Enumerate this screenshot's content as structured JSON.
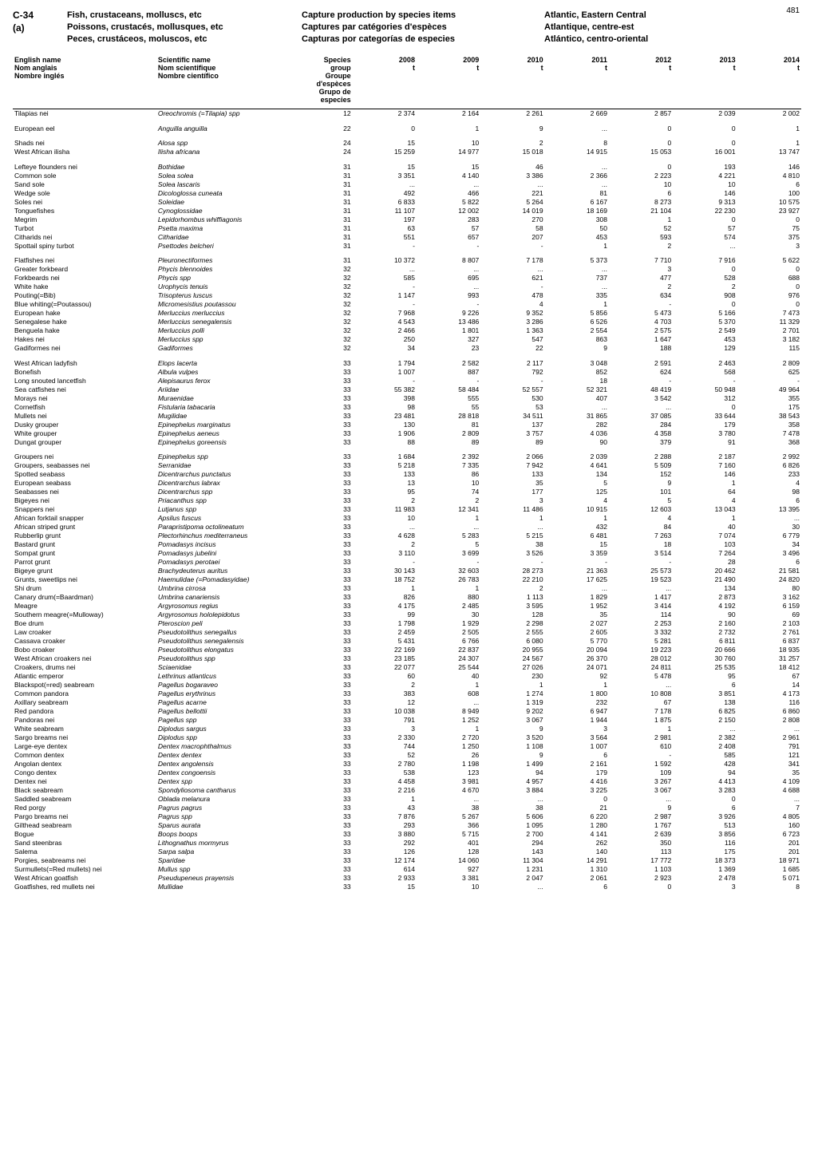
{
  "page": {
    "number": "481"
  },
  "header": {
    "code": [
      "C-34",
      "(a)"
    ],
    "title1": [
      "Fish, crustaceans, molluscs, etc",
      "Poissons, crustacés, mollusques, etc",
      "Peces, crustáceos, moluscos, etc"
    ],
    "title2": [
      "Capture production by species items",
      "Captures par catégories d'espèces",
      "Capturas por categorías de especies"
    ],
    "title3": [
      "Atlantic, Eastern Central",
      "Atlantique, centre-est",
      "Atlántico, centro-oriental"
    ]
  },
  "columns": {
    "english": [
      "English name",
      "Nom anglais",
      "Nombre inglés"
    ],
    "scientific": [
      "Scientific name",
      "Nom scientifique",
      "Nombre científico"
    ],
    "group": [
      "Species group",
      "Groupe d'espèces",
      "Grupo de especies"
    ],
    "years": [
      "2008",
      "2009",
      "2010",
      "2011",
      "2012",
      "2013",
      "2014"
    ],
    "unit": "t"
  },
  "gaps": [
    1,
    2,
    4,
    14,
    25,
    35,
    88
  ],
  "rows": [
    [
      "Tilapias nei",
      "Oreochromis (=Tilapia) spp",
      "12",
      "2 374",
      "2 164",
      "2 261",
      "2 669",
      "2 857",
      "2 039",
      "2 002"
    ],
    [
      "European eel",
      "Anguilla anguilla",
      "22",
      "0",
      "1",
      "9",
      "...",
      "0",
      "0",
      "1"
    ],
    [
      "Shads nei",
      "Alosa spp",
      "24",
      "15",
      "10",
      "2",
      "8",
      "0",
      "0",
      "1"
    ],
    [
      "West African ilisha",
      "Ilisha africana",
      "24",
      "15 259",
      "14 977",
      "15 018",
      "14 915",
      "15 053",
      "16 001",
      "13 747"
    ],
    [
      "Lefteye flounders nei",
      "Bothidae",
      "31",
      "15",
      "15",
      "46",
      "...",
      "0",
      "193",
      "146"
    ],
    [
      "Common sole",
      "Solea solea",
      "31",
      "3 351",
      "4 140",
      "3 386",
      "2 366",
      "2 223",
      "4 221",
      "4 810"
    ],
    [
      "Sand sole",
      "Solea lascaris",
      "31",
      "...",
      "...",
      "...",
      "...",
      "10",
      "10",
      "6"
    ],
    [
      "Wedge sole",
      "Dicologlossa cuneata",
      "31",
      "492",
      "466",
      "221",
      "81",
      "6",
      "146",
      "100"
    ],
    [
      "Soles nei",
      "Soleidae",
      "31",
      "6 833",
      "5 822",
      "5 264",
      "6 167",
      "8 273",
      "9 313",
      "10 575"
    ],
    [
      "Tonguefishes",
      "Cynoglossidae",
      "31",
      "11 107",
      "12 002",
      "14 019",
      "18 169",
      "21 104",
      "22 230",
      "23 927"
    ],
    [
      "Megrim",
      "Lepidorhombus whiffiagonis",
      "31",
      "197",
      "283",
      "270",
      "308",
      "1",
      "0",
      "0"
    ],
    [
      "Turbot",
      "Psetta maxima",
      "31",
      "63",
      "57",
      "58",
      "50",
      "52",
      "57",
      "75"
    ],
    [
      "Citharids nei",
      "Citharidae",
      "31",
      "551",
      "657",
      "207",
      "453",
      "593",
      "574",
      "375"
    ],
    [
      "Spottail spiny turbot",
      "Psettodes belcheri",
      "31",
      "-",
      "-",
      "-",
      "1",
      "2",
      "...",
      "3"
    ],
    [
      "Flatfishes nei",
      "Pleuronectiformes",
      "31",
      "10 372",
      "8 807",
      "7 178",
      "5 373",
      "7 710",
      "7 916",
      "5 622"
    ],
    [
      "Greater forkbeard",
      "Phycis blennoides",
      "32",
      "...",
      "...",
      "...",
      "...",
      "3",
      "0",
      "0"
    ],
    [
      "Forkbeards nei",
      "Phycis spp",
      "32",
      "585",
      "695",
      "621",
      "737",
      "477",
      "528",
      "688"
    ],
    [
      "White hake",
      "Urophycis tenuis",
      "32",
      "-",
      "...",
      "-",
      "...",
      "2",
      "2",
      "0"
    ],
    [
      "Pouting(=Bib)",
      "Trisopterus luscus",
      "32",
      "1 147",
      "993",
      "478",
      "335",
      "634",
      "908",
      "976"
    ],
    [
      "Blue whiting(=Poutassou)",
      "Micromesistius poutassou",
      "32",
      "-",
      "-",
      "4",
      "1",
      "-",
      "0",
      "0"
    ],
    [
      "European hake",
      "Merluccius merluccius",
      "32",
      "7 968",
      "9 226",
      "9 352",
      "5 856",
      "5 473",
      "5 166",
      "7 473"
    ],
    [
      "Senegalese hake",
      "Merluccius senegalensis",
      "32",
      "4 543",
      "13 486",
      "3 286",
      "6 526",
      "4 703",
      "5 370",
      "11 329"
    ],
    [
      "Benguela hake",
      "Merluccius polli",
      "32",
      "2 466",
      "1 801",
      "1 363",
      "2 554",
      "2 575",
      "2 549",
      "2 701"
    ],
    [
      "Hakes nei",
      "Merluccius spp",
      "32",
      "250",
      "327",
      "547",
      "863",
      "1 647",
      "453",
      "3 182"
    ],
    [
      "Gadiformes nei",
      "Gadiformes",
      "32",
      "34",
      "23",
      "22",
      "9",
      "188",
      "129",
      "115"
    ],
    [
      "West African ladyfish",
      "Elops lacerta",
      "33",
      "1 794",
      "2 582",
      "2 117",
      "3 048",
      "2 591",
      "2 463",
      "2 809"
    ],
    [
      "Bonefish",
      "Albula vulpes",
      "33",
      "1 007",
      "887",
      "792",
      "852",
      "624",
      "568",
      "625"
    ],
    [
      "Long snouted lancetfish",
      "Alepisaurus ferox",
      "33",
      "-",
      "-",
      "-",
      "18",
      "-",
      "-",
      "-"
    ],
    [
      "Sea catfishes nei",
      "Ariidae",
      "33",
      "55 382",
      "58 484",
      "52 557",
      "52 321",
      "48 419",
      "50 948",
      "49 964"
    ],
    [
      "Morays nei",
      "Muraenidae",
      "33",
      "398",
      "555",
      "530",
      "407",
      "3 542",
      "312",
      "355"
    ],
    [
      "Cornetfish",
      "Fistularia tabacaria",
      "33",
      "98",
      "55",
      "53",
      "...",
      "...",
      "0",
      "175"
    ],
    [
      "Mullets nei",
      "Mugilidae",
      "33",
      "23 481",
      "28 818",
      "34 511",
      "31 865",
      "37 085",
      "33 644",
      "38 543"
    ],
    [
      "Dusky grouper",
      "Epinephelus marginatus",
      "33",
      "130",
      "81",
      "137",
      "282",
      "284",
      "179",
      "358"
    ],
    [
      "White grouper",
      "Epinephelus aeneus",
      "33",
      "1 906",
      "2 809",
      "3 757",
      "4 036",
      "4 358",
      "3 780",
      "7 478"
    ],
    [
      "Dungat grouper",
      "Epinephelus goreensis",
      "33",
      "88",
      "89",
      "89",
      "90",
      "379",
      "91",
      "368"
    ],
    [
      "Groupers nei",
      "Epinephelus spp",
      "33",
      "1 684",
      "2 392",
      "2 066",
      "2 039",
      "2 288",
      "2 187",
      "2 992"
    ],
    [
      "Groupers, seabasses nei",
      "Serranidae",
      "33",
      "5 218",
      "7 335",
      "7 942",
      "4 641",
      "5 509",
      "7 160",
      "6 826"
    ],
    [
      "Spotted seabass",
      "Dicentrarchus punctatus",
      "33",
      "133",
      "86",
      "133",
      "134",
      "152",
      "146",
      "233"
    ],
    [
      "European seabass",
      "Dicentrarchus labrax",
      "33",
      "13",
      "10",
      "35",
      "5",
      "9",
      "1",
      "4"
    ],
    [
      "Seabasses nei",
      "Dicentrarchus spp",
      "33",
      "95",
      "74",
      "177",
      "125",
      "101",
      "64",
      "98"
    ],
    [
      "Bigeyes nei",
      "Priacanthus spp",
      "33",
      "2",
      "2",
      "3",
      "4",
      "5",
      "4",
      "6"
    ],
    [
      "Snappers nei",
      "Lutjanus spp",
      "33",
      "11 983",
      "12 341",
      "11 486",
      "10 915",
      "12 603",
      "13 043",
      "13 395"
    ],
    [
      "African forktail snapper",
      "Apsilus fuscus",
      "33",
      "10",
      "1",
      "1",
      "1",
      "4",
      "1",
      "..."
    ],
    [
      "African striped grunt",
      "Parapristipoma octolineatum",
      "33",
      "...",
      "...",
      "...",
      "432",
      "84",
      "40",
      "30"
    ],
    [
      "Rubberlip grunt",
      "Plectorhinchus mediterraneus",
      "33",
      "4 628",
      "5 283",
      "5 215",
      "6 481",
      "7 263",
      "7 074",
      "6 779"
    ],
    [
      "Bastard grunt",
      "Pomadasys incisus",
      "33",
      "2",
      "5",
      "38",
      "15",
      "18",
      "103",
      "34"
    ],
    [
      "Sompat grunt",
      "Pomadasys jubelini",
      "33",
      "3 110",
      "3 699",
      "3 526",
      "3 359",
      "3 514",
      "7 264",
      "3 496"
    ],
    [
      "Parrot grunt",
      "Pomadasys perotaei",
      "33",
      "-",
      "-",
      "-",
      "-",
      "-",
      "28",
      "6"
    ],
    [
      "Bigeye grunt",
      "Brachydeuterus auritus",
      "33",
      "30 143",
      "32 603",
      "28 273",
      "21 363",
      "25 573",
      "20 462",
      "21 581"
    ],
    [
      "Grunts, sweetlips nei",
      "Haemulidae (=Pomadasyidae)",
      "33",
      "18 752",
      "26 783",
      "22 210",
      "17 625",
      "19 523",
      "21 490",
      "24 820"
    ],
    [
      "Shi drum",
      "Umbrina cirrosa",
      "33",
      "1",
      "1",
      "2",
      "...",
      "...",
      "134",
      "80"
    ],
    [
      "Canary drum(=Baardman)",
      "Umbrina canariensis",
      "33",
      "826",
      "880",
      "1 113",
      "1 829",
      "1 417",
      "2 873",
      "3 162"
    ],
    [
      "Meagre",
      "Argyrosomus regius",
      "33",
      "4 175",
      "2 485",
      "3 595",
      "1 952",
      "3 414",
      "4 192",
      "6 159"
    ],
    [
      "Southern meagre(=Mulloway)",
      "Argyrosomus hololepidotus",
      "33",
      "99",
      "30",
      "128",
      "35",
      "114",
      "90",
      "69"
    ],
    [
      "Boe drum",
      "Pteroscion peli",
      "33",
      "1 798",
      "1 929",
      "2 298",
      "2 027",
      "2 253",
      "2 160",
      "2 103"
    ],
    [
      "Law croaker",
      "Pseudotolithus senegallus",
      "33",
      "2 459",
      "2 505",
      "2 555",
      "2 605",
      "3 332",
      "2 732",
      "2 761"
    ],
    [
      "Cassava croaker",
      "Pseudotolithus senegalensis",
      "33",
      "5 431",
      "6 766",
      "6 080",
      "5 770",
      "5 281",
      "6 811",
      "6 837"
    ],
    [
      "Bobo croaker",
      "Pseudotolithus elongatus",
      "33",
      "22 169",
      "22 837",
      "20 955",
      "20 094",
      "19 223",
      "20 666",
      "18 935"
    ],
    [
      "West African croakers nei",
      "Pseudotolithus spp",
      "33",
      "23 185",
      "24 307",
      "24 567",
      "26 370",
      "28 012",
      "30 760",
      "31 257"
    ],
    [
      "Croakers, drums nei",
      "Sciaenidae",
      "33",
      "22 077",
      "25 544",
      "27 026",
      "24 071",
      "24 811",
      "25 535",
      "18 412"
    ],
    [
      "Atlantic emperor",
      "Lethrinus atlanticus",
      "33",
      "60",
      "40",
      "230",
      "92",
      "5 478",
      "95",
      "67"
    ],
    [
      "Blackspot(=red) seabream",
      "Pagellus bogaraveo",
      "33",
      "2",
      "1",
      "1",
      "1",
      "...",
      "6",
      "14"
    ],
    [
      "Common pandora",
      "Pagellus erythrinus",
      "33",
      "383",
      "608",
      "1 274",
      "1 800",
      "10 808",
      "3 851",
      "4 173"
    ],
    [
      "Axillary seabream",
      "Pagellus acarne",
      "33",
      "12",
      "...",
      "1 319",
      "232",
      "67",
      "138",
      "116"
    ],
    [
      "Red pandora",
      "Pagellus bellottii",
      "33",
      "10 038",
      "8 949",
      "9 202",
      "6 947",
      "7 178",
      "6 825",
      "6 860"
    ],
    [
      "Pandoras nei",
      "Pagellus spp",
      "33",
      "791",
      "1 252",
      "3 067",
      "1 944",
      "1 875",
      "2 150",
      "2 808"
    ],
    [
      "White seabream",
      "Diplodus sargus",
      "33",
      "3",
      "1",
      "9",
      "3",
      "1",
      "...",
      "..."
    ],
    [
      "Sargo breams nei",
      "Diplodus spp",
      "33",
      "2 330",
      "2 720",
      "3 520",
      "3 564",
      "2 981",
      "2 382",
      "2 961"
    ],
    [
      "Large-eye dentex",
      "Dentex macrophthalmus",
      "33",
      "744",
      "1 250",
      "1 108",
      "1 007",
      "610",
      "2 408",
      "791"
    ],
    [
      "Common dentex",
      "Dentex dentex",
      "33",
      "52",
      "26",
      "9",
      "6",
      "-",
      "585",
      "121"
    ],
    [
      "Angolan dentex",
      "Dentex angolensis",
      "33",
      "2 780",
      "1 198",
      "1 499",
      "2 161",
      "1 592",
      "428",
      "341"
    ],
    [
      "Congo dentex",
      "Dentex congoensis",
      "33",
      "538",
      "123",
      "94",
      "179",
      "109",
      "94",
      "35"
    ],
    [
      "Dentex nei",
      "Dentex spp",
      "33",
      "4 458",
      "3 981",
      "4 957",
      "4 416",
      "3 267",
      "4 413",
      "4 109"
    ],
    [
      "Black seabream",
      "Spondyliosoma cantharus",
      "33",
      "2 216",
      "4 670",
      "3 884",
      "3 225",
      "3 067",
      "3 283",
      "4 688"
    ],
    [
      "Saddled seabream",
      "Oblada melanura",
      "33",
      "1",
      "...",
      "...",
      "0",
      "...",
      "0",
      "..."
    ],
    [
      "Red porgy",
      "Pagrus pagrus",
      "33",
      "43",
      "38",
      "38",
      "21",
      "9",
      "6",
      "7"
    ],
    [
      "Pargo breams nei",
      "Pagrus spp",
      "33",
      "7 876",
      "5 267",
      "5 606",
      "6 220",
      "2 987",
      "3 926",
      "4 805"
    ],
    [
      "Gilthead seabream",
      "Sparus aurata",
      "33",
      "293",
      "366",
      "1 095",
      "1 280",
      "1 767",
      "513",
      "160"
    ],
    [
      "Bogue",
      "Boops boops",
      "33",
      "3 880",
      "5 715",
      "2 700",
      "4 141",
      "2 639",
      "3 856",
      "6 723"
    ],
    [
      "Sand steenbras",
      "Lithognathus mormyrus",
      "33",
      "292",
      "401",
      "294",
      "262",
      "350",
      "116",
      "201"
    ],
    [
      "Salema",
      "Sarpa salpa",
      "33",
      "126",
      "128",
      "143",
      "140",
      "113",
      "175",
      "201"
    ],
    [
      "Porgies, seabreams nei",
      "Sparidae",
      "33",
      "12 174",
      "14 060",
      "11 304",
      "14 291",
      "17 772",
      "18 373",
      "18 971"
    ],
    [
      "Surmullets(=Red mullets) nei",
      "Mullus spp",
      "33",
      "614",
      "927",
      "1 231",
      "1 310",
      "1 103",
      "1 369",
      "1 685"
    ],
    [
      "West African goatfish",
      "Pseudupeneus prayensis",
      "33",
      "2 933",
      "3 381",
      "2 047",
      "2 061",
      "2 923",
      "2 478",
      "5 071"
    ],
    [
      "Goatfishes, red mullets nei",
      "Mullidae",
      "33",
      "15",
      "10",
      "...",
      "6",
      "0",
      "3",
      "8"
    ]
  ]
}
